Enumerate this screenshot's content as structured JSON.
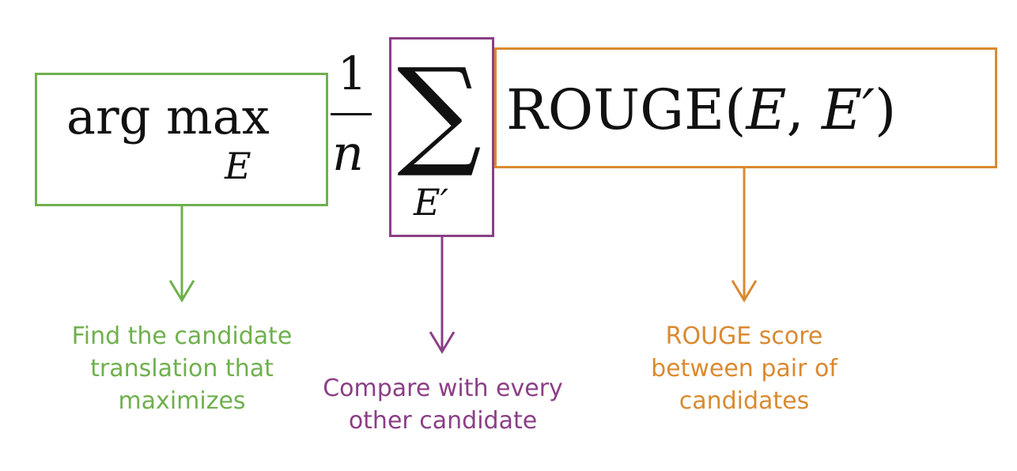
{
  "formula": {
    "argmax_text": "arg max",
    "argmax_subscript": "E",
    "fraction_numerator": "1",
    "fraction_denominator": "n",
    "sum_symbol": "∑",
    "sum_subscript": "E′",
    "rouge_text": "ROUGE(E, E′)",
    "rouge_prefix": "ROUGE(",
    "rouge_arg1": "E",
    "rouge_sep": ", ",
    "rouge_arg2": "E′",
    "rouge_suffix": ")"
  },
  "annotations": {
    "argmax": {
      "lines": [
        "Find the candidate",
        "translation that",
        "maximizes"
      ],
      "color": "#6fb04e"
    },
    "sum": {
      "lines": [
        "Compare with every",
        "other candidate"
      ],
      "color": "#8b3f86"
    },
    "rouge": {
      "lines": [
        "ROUGE score",
        "between pair of",
        "candidates"
      ],
      "color": "#d98a30"
    }
  }
}
